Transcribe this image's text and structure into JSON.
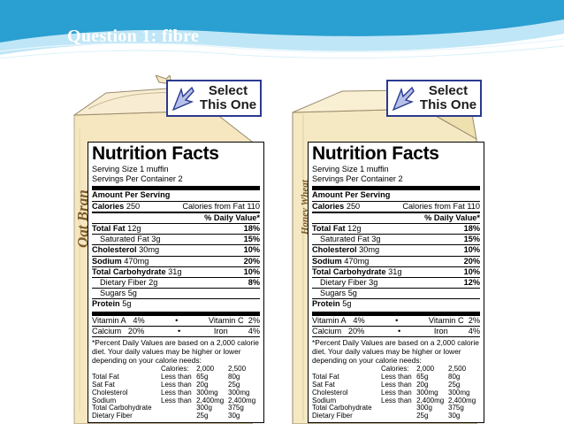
{
  "slide": {
    "title": "Question 1: fibre"
  },
  "panels": [
    {
      "select_line1": "Select",
      "select_line2": "This One",
      "brand": "Oat Bran",
      "label": {
        "title": "Nutrition Facts",
        "serving_size": "Serving Size 1 muffin",
        "servings": "Servings Per Container 2",
        "amount_per_serving": "Amount Per Serving",
        "calories_label": "Calories",
        "calories": "250",
        "calories_fat_label": "Calories from Fat",
        "calories_fat": "110",
        "dv_header": "% Daily Value*",
        "total_fat_label": "Total Fat",
        "total_fat": "12g",
        "total_fat_dv": "18%",
        "sat_fat_label": "Saturated Fat",
        "sat_fat": "3g",
        "sat_fat_dv": "15%",
        "cholesterol_label": "Cholesterol",
        "cholesterol": "30mg",
        "cholesterol_dv": "10%",
        "sodium_label": "Sodium",
        "sodium": "470mg",
        "sodium_dv": "20%",
        "carb_label": "Total Carbohydrate",
        "carb": "31g",
        "carb_dv": "10%",
        "fiber_label": "Dietary Fiber",
        "fiber": "2g",
        "fiber_dv": "8%",
        "sugars_label": "Sugars",
        "sugars": "5g",
        "protein_label": "Protein",
        "protein": "5g",
        "vit_a": "Vitamin A",
        "vit_a_dv": "4%",
        "vit_c": "Vitamin C",
        "vit_c_dv": "2%",
        "calcium": "Calcium",
        "calcium_dv": "20%",
        "iron": "Iron",
        "iron_dv": "4%",
        "footnote": "*Percent Daily Values are based on a 2,000 calorie diet. Your daily values may be higher or lower depending on your calorie needs:",
        "calories_header": "Calories:",
        "cal_2000": "2,000",
        "cal_2500": "2,500",
        "dv_table": [
          {
            "name": "Total Fat",
            "cmp": "Less than",
            "v1": "65g",
            "v2": "80g"
          },
          {
            "name": "Sat Fat",
            "cmp": "Less than",
            "v1": "20g",
            "v2": "25g"
          },
          {
            "name": "Cholesterol",
            "cmp": "Less than",
            "v1": "300mg",
            "v2": "300mg"
          },
          {
            "name": "Sodium",
            "cmp": "Less than",
            "v1": "2,400mg",
            "v2": "2,400mg"
          },
          {
            "name": "Total Carbohydrate",
            "cmp": "",
            "v1": "300g",
            "v2": "375g"
          },
          {
            "name": "Dietary Fiber",
            "cmp": "",
            "v1": "25g",
            "v2": "30g"
          }
        ]
      }
    },
    {
      "select_line1": "Select",
      "select_line2": "This One",
      "brand": "Honey Wheat",
      "label": {
        "title": "Nutrition Facts",
        "serving_size": "Serving Size 1 muffin",
        "servings": "Servings Per Container 2",
        "amount_per_serving": "Amount Per Serving",
        "calories_label": "Calories",
        "calories": "250",
        "calories_fat_label": "Calories from Fat",
        "calories_fat": "110",
        "dv_header": "% Daily Value*",
        "total_fat_label": "Total Fat",
        "total_fat": "12g",
        "total_fat_dv": "18%",
        "sat_fat_label": "Saturated Fat",
        "sat_fat": "3g",
        "sat_fat_dv": "15%",
        "cholesterol_label": "Cholesterol",
        "cholesterol": "30mg",
        "cholesterol_dv": "10%",
        "sodium_label": "Sodium",
        "sodium": "470mg",
        "sodium_dv": "20%",
        "carb_label": "Total Carbohydrate",
        "carb": "31g",
        "carb_dv": "10%",
        "fiber_label": "Dietary Fiber",
        "fiber": "3g",
        "fiber_dv": "12%",
        "sugars_label": "Sugars",
        "sugars": "5g",
        "protein_label": "Protein",
        "protein": "5g",
        "vit_a": "Vitamin A",
        "vit_a_dv": "4%",
        "vit_c": "Vitamin C",
        "vit_c_dv": "2%",
        "calcium": "Calcium",
        "calcium_dv": "20%",
        "iron": "Iron",
        "iron_dv": "4%",
        "footnote": "*Percent Daily Values are based on a 2,000 calorie diet. Your daily values may be higher or lower depending on your calorie needs:",
        "calories_header": "Calories:",
        "cal_2000": "2,000",
        "cal_2500": "2,500",
        "dv_table": [
          {
            "name": "Total Fat",
            "cmp": "Less than",
            "v1": "65g",
            "v2": "80g"
          },
          {
            "name": "Sat Fat",
            "cmp": "Less than",
            "v1": "20g",
            "v2": "25g"
          },
          {
            "name": "Cholesterol",
            "cmp": "Less than",
            "v1": "300mg",
            "v2": "300mg"
          },
          {
            "name": "Sodium",
            "cmp": "Less than",
            "v1": "2,400mg",
            "v2": "2,400mg"
          },
          {
            "name": "Total Carbohydrate",
            "cmp": "",
            "v1": "300g",
            "v2": "375g"
          },
          {
            "name": "Dietary Fiber",
            "cmp": "",
            "v1": "25g",
            "v2": "30g"
          }
        ]
      }
    }
  ],
  "colors": {
    "banner_dark": "#2a9fd1",
    "banner_light": "#bfe6f6",
    "bag": "#f6e7c1",
    "box": "#f4e9c2",
    "brand_text": "#7a5a2a"
  }
}
